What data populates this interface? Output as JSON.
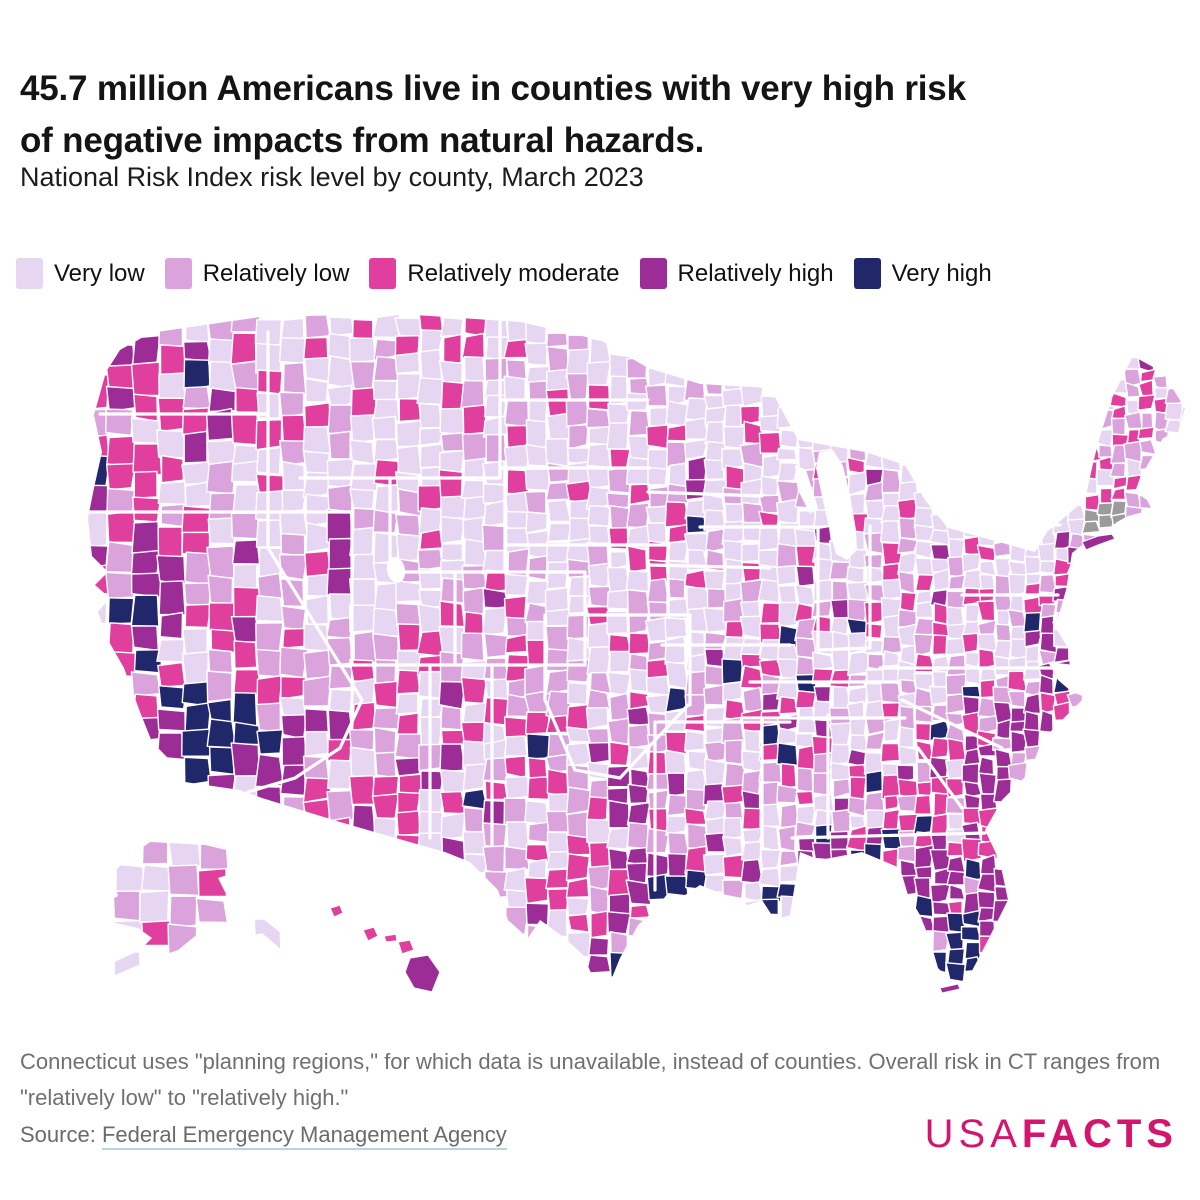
{
  "header": {
    "title_lines": [
      "45.7 million Americans live in counties with very high risk",
      "of negative impacts from natural hazards."
    ],
    "subtitle": "National Risk Index risk level by county, March 2023"
  },
  "legend": {
    "items": [
      {
        "label": "Very low",
        "color": "#e7d6f2"
      },
      {
        "label": "Relatively low",
        "color": "#dba3dc"
      },
      {
        "label": "Relatively moderate",
        "color": "#e03f9d"
      },
      {
        "label": "Relatively high",
        "color": "#9c2d96"
      },
      {
        "label": "Very high",
        "color": "#20276a"
      }
    ]
  },
  "chart_data": {
    "type": "choropleth",
    "geography": "United States counties (including Alaska and Hawaii)",
    "title": "45.7 million Americans live in counties with very high risk of negative impacts from natural hazards.",
    "subtitle": "National Risk Index risk level by county, March 2023",
    "headline_value": "45.7 million",
    "date": "March 2023",
    "categories": [
      "Very low",
      "Relatively low",
      "Relatively moderate",
      "Relatively high",
      "Very high"
    ],
    "colors": [
      "#e7d6f2",
      "#dba3dc",
      "#e03f9d",
      "#9c2d96",
      "#20276a"
    ],
    "no_data": {
      "label": "No data (Connecticut planning regions)",
      "color": "#9b9b9b"
    },
    "legend_position": "top",
    "county_border_color": "#ffffff"
  },
  "map": {
    "no_data_color": "#9b9b9b",
    "border_color": "#ffffff"
  },
  "footnote": {
    "text": "Connecticut uses \"planning regions,\" for which data is unavailable, instead of counties. Overall risk in CT ranges from \"relatively low\" to \"relatively high.\""
  },
  "source": {
    "prefix": "Source: ",
    "link_label": "Federal Emergency Management Agency"
  },
  "branding": {
    "word_light": "USA",
    "word_bold": "FACTS",
    "color": "#d4156e"
  }
}
